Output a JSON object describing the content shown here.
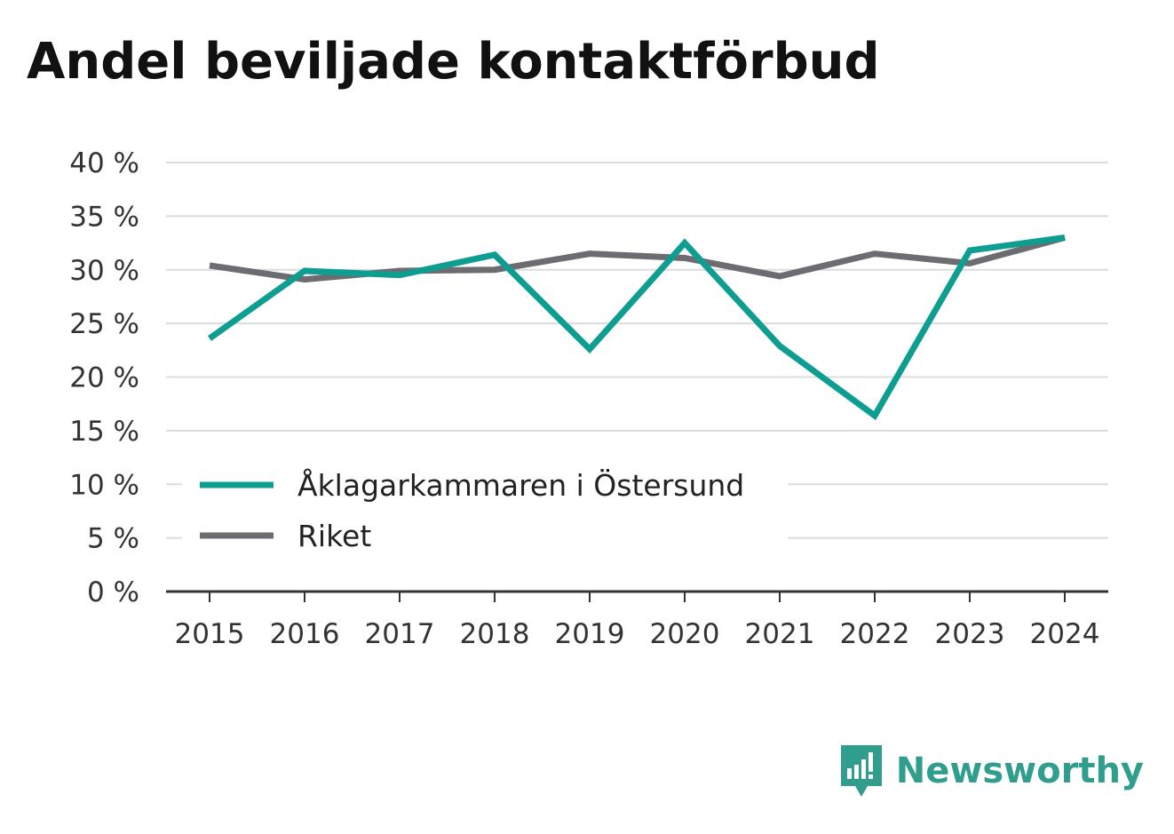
{
  "chart_data": {
    "type": "line",
    "title": "Andel beviljade kontaktförbud",
    "xlabel": "",
    "ylabel": "",
    "categories": [
      "2015",
      "2016",
      "2017",
      "2018",
      "2019",
      "2020",
      "2021",
      "2022",
      "2023",
      "2024"
    ],
    "ylim": [
      0,
      40
    ],
    "yticks": [
      0,
      5,
      10,
      15,
      20,
      25,
      30,
      35,
      40
    ],
    "ytick_labels": [
      "0 %",
      "5 %",
      "10 %",
      "15 %",
      "20 %",
      "25 %",
      "30 %",
      "35 %",
      "40 %"
    ],
    "grid": true,
    "legend_position": "lower-left",
    "series": [
      {
        "name": "Åklagarkammaren i Östersund",
        "color": "#0e9e91",
        "values": [
          23.6,
          29.9,
          29.5,
          31.4,
          22.6,
          32.5,
          22.9,
          16.4,
          31.8,
          33.0
        ]
      },
      {
        "name": "Riket",
        "color": "#6d6c70",
        "values": [
          30.4,
          29.1,
          29.9,
          30.0,
          31.5,
          31.1,
          29.4,
          31.5,
          30.6,
          33.0
        ]
      }
    ]
  },
  "brand": {
    "name": "Newsworthy",
    "icon": "newsworthy-logo-icon",
    "color": "#2f9e8d"
  }
}
